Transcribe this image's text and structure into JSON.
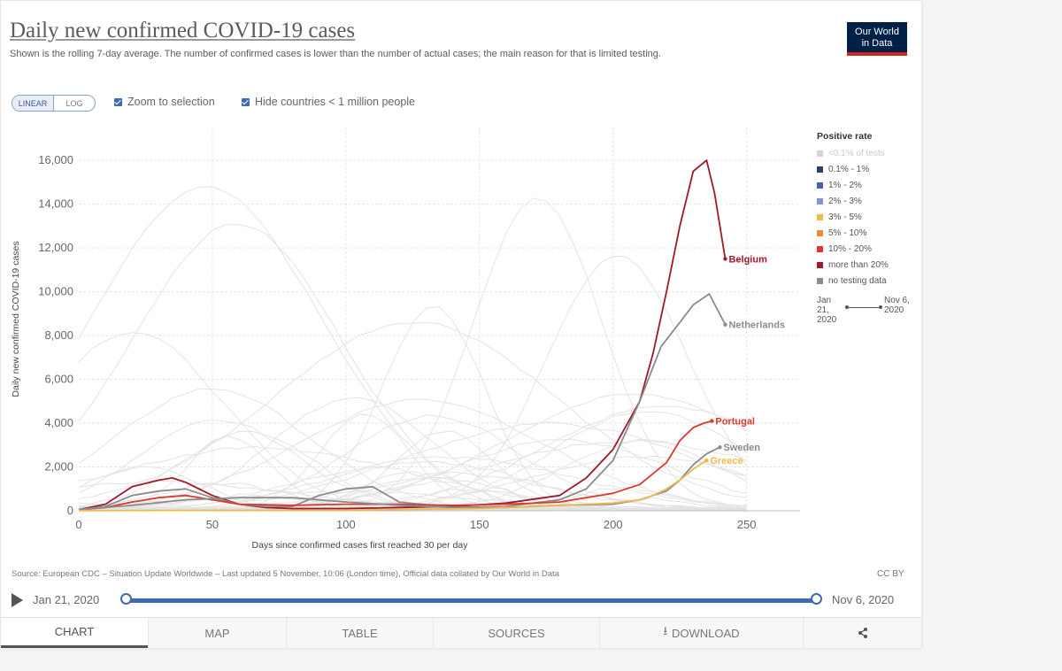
{
  "header": {
    "title": "Daily new confirmed COVID-19 cases",
    "subtitle": "Shown is the rolling 7-day average. The number of confirmed cases is lower than the number of actual cases; the main reason for that is limited testing.",
    "logo_line1": "Our World",
    "logo_line2": "in Data",
    "logo_color": "#002147",
    "logo_accent": "#ce261e"
  },
  "controls": {
    "linear_label": "LINEAR",
    "log_label": "LOG",
    "zoom_label": "Zoom to selection",
    "hide_label": "Hide countries < 1 million people"
  },
  "legend": {
    "title": "Positive rate",
    "items": [
      {
        "label": "<0.1% of tests",
        "color": "#d4d4d4",
        "faint": true
      },
      {
        "label": "0.1% - 1%",
        "color": "#2c3e6b"
      },
      {
        "label": "1% - 2%",
        "color": "#4a63a8"
      },
      {
        "label": "2% - 3%",
        "color": "#7d98d0"
      },
      {
        "label": "3% - 5%",
        "color": "#f1b84a"
      },
      {
        "label": "5% - 10%",
        "color": "#ee8a3c"
      },
      {
        "label": "10% - 20%",
        "color": "#dc3a2c"
      },
      {
        "label": "more than 20%",
        "color": "#a2182b"
      },
      {
        "label": "no testing data",
        "color": "#8c8c8c"
      }
    ],
    "time_start": "Jan 21, 2020",
    "time_end": "Nov 6, 2020"
  },
  "footer": {
    "source": "Source: European CDC – Situation Update Worldwide – Last updated 5 November, 10:06 (London time), Official data collated by Our World in Data",
    "license": "CC BY"
  },
  "timeline": {
    "start_label": "Jan 21, 2020",
    "end_label": "Nov 6, 2020"
  },
  "tabs": {
    "chart": "CHART",
    "map": "MAP",
    "table": "TABLE",
    "sources": "SOURCES",
    "download": "DOWNLOAD"
  },
  "chart_data": {
    "type": "line",
    "xlabel": "Days since confirmed cases first reached 30 per day",
    "ylabel": "Daily new confirmed COVID-19 cases",
    "xlim": [
      0,
      270
    ],
    "ylim": [
      0,
      17500
    ],
    "x_ticks": [
      0,
      50,
      100,
      150,
      200,
      250
    ],
    "y_ticks": [
      0,
      2000,
      4000,
      6000,
      8000,
      10000,
      12000,
      14000,
      16000
    ],
    "y_tick_labels": [
      "0",
      "2,000",
      "4,000",
      "6,000",
      "8,000",
      "10,000",
      "12,000",
      "14,000",
      "16,000"
    ],
    "grid": true,
    "series": [
      {
        "name": "Belgium",
        "color": "#a2182b",
        "x": [
          0,
          10,
          20,
          30,
          35,
          40,
          50,
          60,
          70,
          80,
          100,
          120,
          140,
          160,
          180,
          190,
          200,
          210,
          215,
          220,
          225,
          230,
          235,
          238,
          242
        ],
        "y": [
          50,
          300,
          1100,
          1400,
          1500,
          1300,
          700,
          300,
          150,
          100,
          100,
          150,
          200,
          350,
          700,
          1500,
          2800,
          5000,
          7200,
          10000,
          13000,
          15500,
          16000,
          14500,
          11500
        ]
      },
      {
        "name": "Netherlands",
        "color": "#8c8c8c",
        "x": [
          0,
          10,
          20,
          30,
          40,
          50,
          60,
          70,
          80,
          90,
          100,
          110,
          120,
          140,
          160,
          180,
          190,
          200,
          210,
          218,
          225,
          230,
          236,
          242
        ],
        "y": [
          50,
          200,
          700,
          900,
          1000,
          600,
          300,
          200,
          200,
          700,
          1000,
          1100,
          400,
          150,
          200,
          500,
          1000,
          2300,
          5000,
          7500,
          8600,
          9400,
          9900,
          8500
        ]
      },
      {
        "name": "Portugal",
        "color": "#dc3a2c",
        "x": [
          0,
          10,
          20,
          30,
          40,
          50,
          60,
          80,
          100,
          120,
          140,
          160,
          180,
          200,
          210,
          220,
          225,
          230,
          234,
          237
        ],
        "y": [
          50,
          150,
          400,
          600,
          700,
          500,
          300,
          250,
          300,
          300,
          250,
          300,
          400,
          800,
          1200,
          2200,
          3200,
          3800,
          4000,
          4100
        ]
      },
      {
        "name": "Sweden",
        "color": "#8c8c8c",
        "x": [
          0,
          20,
          40,
          60,
          80,
          100,
          120,
          140,
          160,
          180,
          200,
          210,
          220,
          225,
          230,
          235,
          240
        ],
        "y": [
          50,
          250,
          500,
          600,
          600,
          400,
          250,
          150,
          150,
          250,
          300,
          500,
          900,
          1400,
          2100,
          2600,
          2900
        ]
      },
      {
        "name": "Greece",
        "color": "#f1b84a",
        "x": [
          0,
          50,
          100,
          150,
          170,
          180,
          190,
          200,
          210,
          215,
          220,
          225,
          230,
          235
        ],
        "y": [
          10,
          20,
          30,
          100,
          200,
          250,
          300,
          350,
          500,
          700,
          1000,
          1400,
          1900,
          2300
        ]
      }
    ]
  }
}
